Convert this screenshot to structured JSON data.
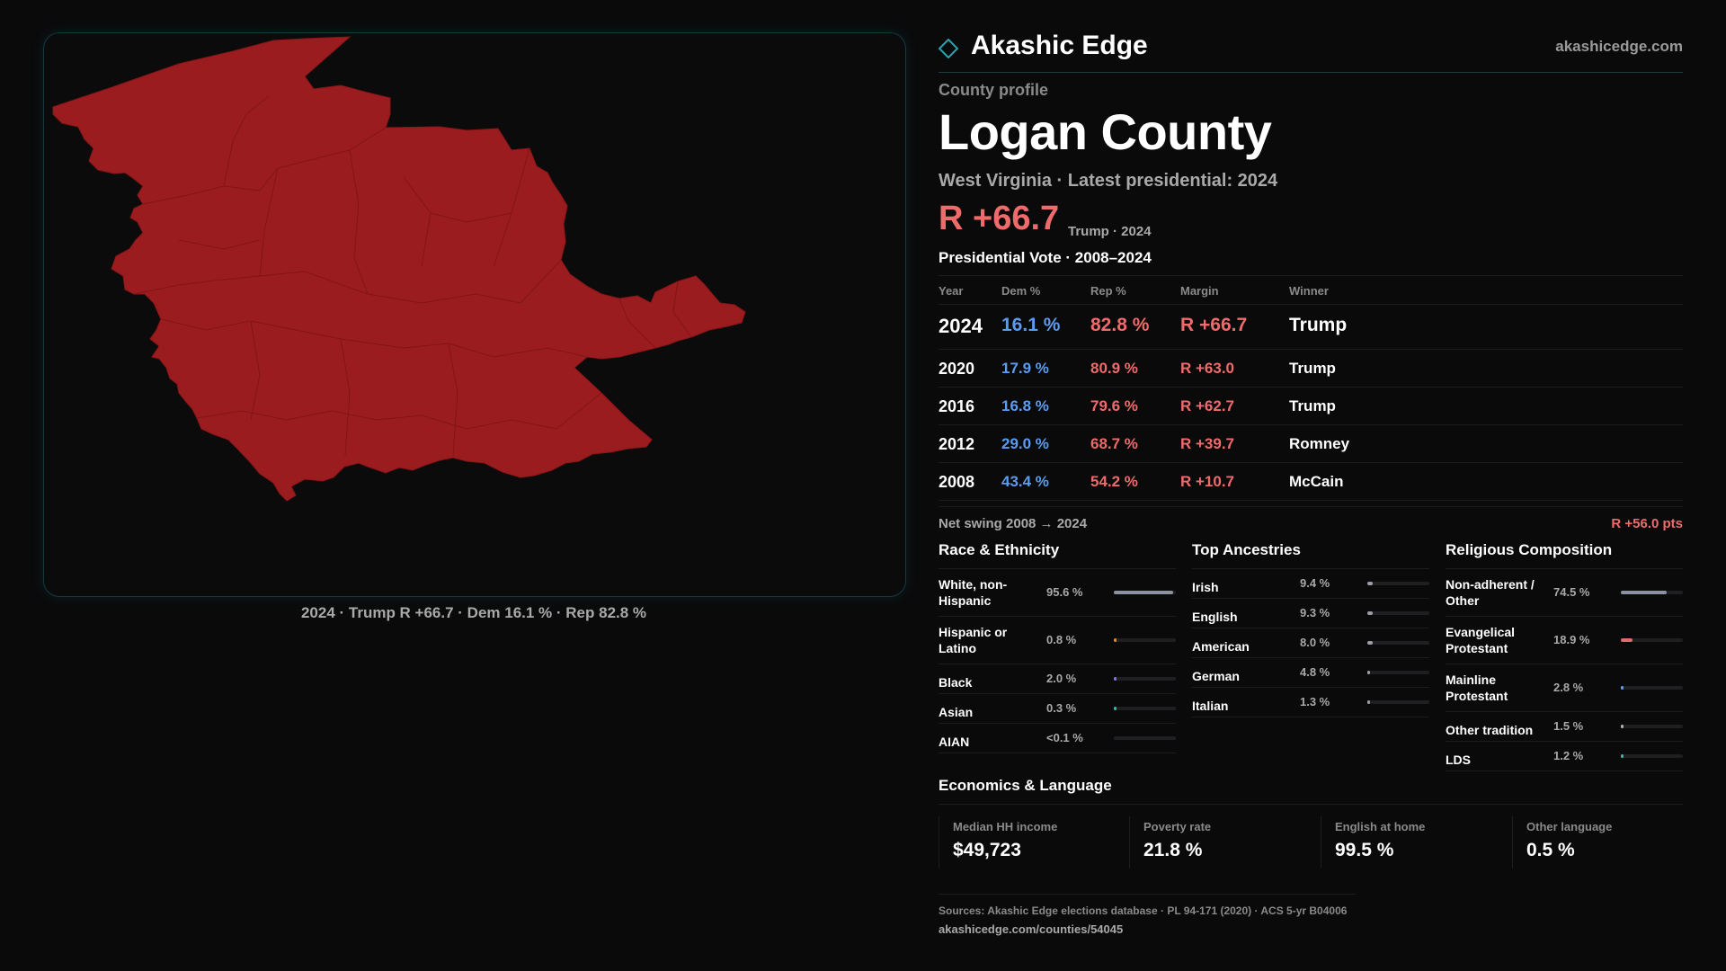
{
  "brand": {
    "name": "Akashic Edge",
    "url": "akashicedge.com"
  },
  "profile": {
    "kicker": "County profile",
    "county": "Logan County",
    "subline": "West Virginia · Latest presidential: 2024",
    "margin": "R +66.7",
    "margin_note": "Trump · 2024"
  },
  "map": {
    "caption": "2024 · Trump R +66.7 · Dem 16.1 % · Rep 82.8 %",
    "fill_color": "#9b1c1e"
  },
  "votes": {
    "title": "Presidential Vote · 2008–2024",
    "headers": [
      "Year",
      "Dem %",
      "Rep %",
      "Margin",
      "Winner"
    ],
    "rows": [
      {
        "year": "2024",
        "dem": "16.1 %",
        "rep": "82.8 %",
        "margin": "R +66.7",
        "winner": "Trump"
      },
      {
        "year": "2020",
        "dem": "17.9 %",
        "rep": "80.9 %",
        "margin": "R +63.0",
        "winner": "Trump"
      },
      {
        "year": "2016",
        "dem": "16.8 %",
        "rep": "79.6 %",
        "margin": "R +62.7",
        "winner": "Trump"
      },
      {
        "year": "2012",
        "dem": "29.0 %",
        "rep": "68.7 %",
        "margin": "R +39.7",
        "winner": "Romney"
      },
      {
        "year": "2008",
        "dem": "43.4 %",
        "rep": "54.2 %",
        "margin": "R +10.7",
        "winner": "McCain"
      }
    ]
  },
  "swing": {
    "label": "Net swing 2008 → 2024",
    "value": "R +56.0 pts"
  },
  "race": {
    "title": "Race & Ethnicity",
    "items": [
      {
        "label": "White, non-Hispanic",
        "value": "95.6 %",
        "share": 0.956,
        "color": "#8b93a3"
      },
      {
        "label": "Hispanic or Latino",
        "value": "0.8 %",
        "share": 0.008,
        "color": "#d9893a"
      },
      {
        "label": "Black",
        "value": "2.0 %",
        "share": 0.02,
        "color": "#7f79d6"
      },
      {
        "label": "Asian",
        "value": "0.3 %",
        "share": 0.003,
        "color": "#3fb5a6"
      },
      {
        "label": "AIAN",
        "value": "<0.1 %",
        "share": 0.0,
        "color": "#c0c0c0"
      }
    ]
  },
  "ancestry": {
    "title": "Top Ancestries",
    "items": [
      {
        "label": "Irish",
        "value": "9.4 %",
        "share": 0.094,
        "color": "#9aa0aa"
      },
      {
        "label": "English",
        "value": "9.3 %",
        "share": 0.093,
        "color": "#9aa0aa"
      },
      {
        "label": "American",
        "value": "8.0 %",
        "share": 0.08,
        "color": "#9aa0aa"
      },
      {
        "label": "German",
        "value": "4.8 %",
        "share": 0.048,
        "color": "#9aa0aa"
      },
      {
        "label": "Italian",
        "value": "1.3 %",
        "share": 0.013,
        "color": "#9aa0aa"
      }
    ]
  },
  "religion": {
    "title": "Religious Composition",
    "items": [
      {
        "label": "Non-adherent / Other",
        "value": "74.5 %",
        "share": 0.745,
        "color": "#8b93a3"
      },
      {
        "label": "Evangelical Protestant",
        "value": "18.9 %",
        "share": 0.189,
        "color": "#e26a6a"
      },
      {
        "label": "Mainline Protestant",
        "value": "2.8 %",
        "share": 0.028,
        "color": "#5b9cf0"
      },
      {
        "label": "Other tradition",
        "value": "1.5 %",
        "share": 0.015,
        "color": "#b0b0b0"
      },
      {
        "label": "LDS",
        "value": "1.2 %",
        "share": 0.012,
        "color": "#3fb5a6"
      }
    ]
  },
  "economics": {
    "title": "Economics & Language",
    "items": [
      {
        "label": "Median HH income",
        "value": "$49,723"
      },
      {
        "label": "Poverty rate",
        "value": "21.8 %"
      },
      {
        "label": "English at home",
        "value": "99.5 %"
      },
      {
        "label": "Other language",
        "value": "0.5 %"
      }
    ]
  },
  "sources": {
    "text": "Sources: Akashic Edge elections database · PL 94-171 (2020) · ACS 5-yr B04006",
    "url": "akashicedge.com/counties/54045"
  }
}
